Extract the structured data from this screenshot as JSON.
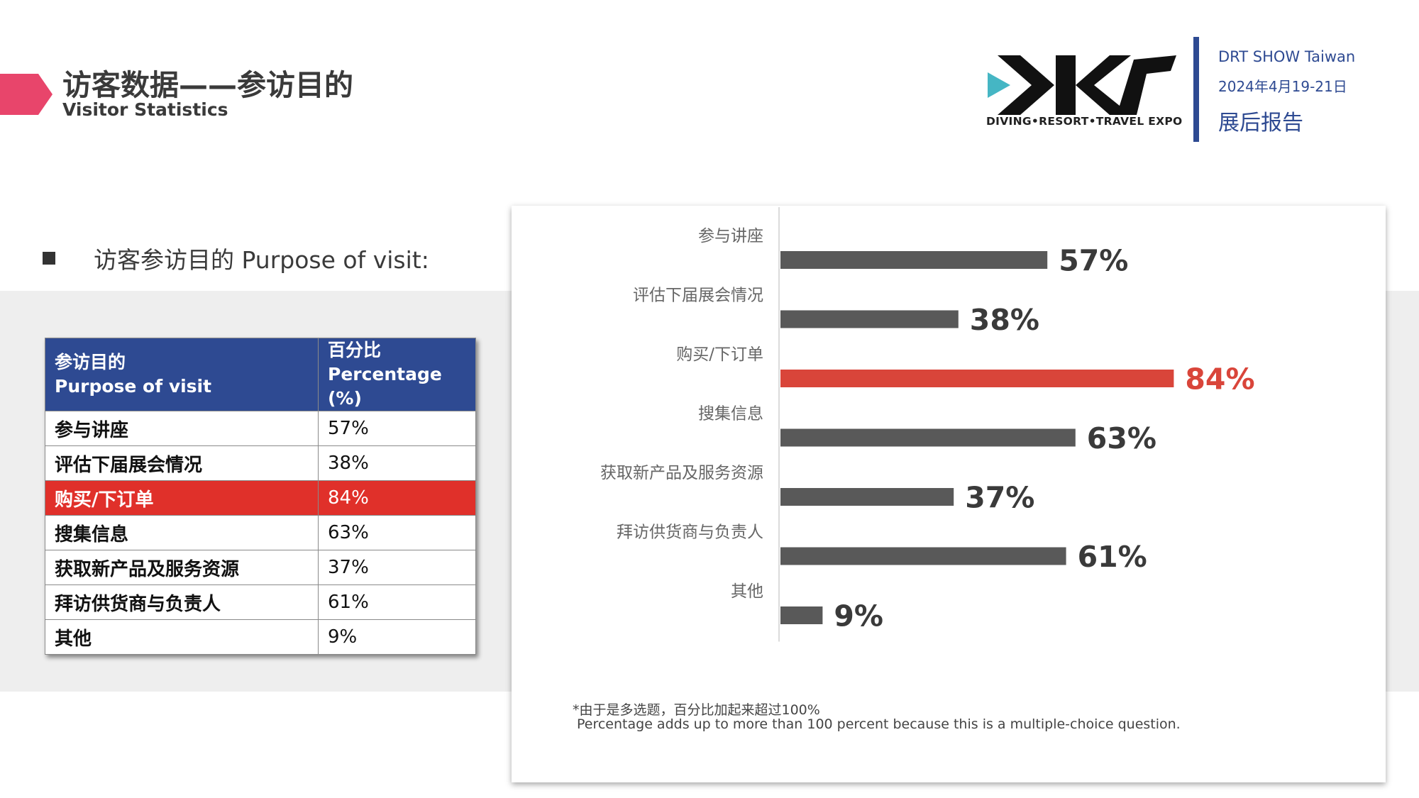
{
  "header": {
    "title_cn": "访客数据——参访目的",
    "title_en": "Visitor Statistics"
  },
  "brand": {
    "logo_text": "DRT",
    "logo_subtitle": "DIVING•RESORT•TRAVEL EXPO",
    "show_name": "DRT SHOW Taiwan",
    "show_date": "2024年4月19-21日",
    "report_label": "展后报告",
    "accent_color": "#e8456b",
    "brand_color": "#2e4a92"
  },
  "section": {
    "heading": "访客参访目的 Purpose of visit:"
  },
  "table": {
    "header_purpose_cn": "参访目的",
    "header_purpose_en": "Purpose of visit",
    "header_pct_cn": "百分比",
    "header_pct_en": "Percentage (%)",
    "rows": [
      {
        "purpose": "参与讲座",
        "pct": "57%"
      },
      {
        "purpose": "评估下届展会情况",
        "pct": "38%"
      },
      {
        "purpose": "购买/下订单",
        "pct": "84%"
      },
      {
        "purpose": "搜集信息",
        "pct": "63%"
      },
      {
        "purpose": "获取新产品及服务资源",
        "pct": "37%"
      },
      {
        "purpose": "拜访供货商与负责人",
        "pct": "61%"
      },
      {
        "purpose": "其他",
        "pct": "9%"
      }
    ],
    "highlight_index": 2,
    "highlight_color": "#e0302a"
  },
  "chart_data": {
    "type": "bar",
    "orientation": "horizontal",
    "categories": [
      "参与讲座",
      "评估下届展会情况",
      "购买/下订单",
      "搜集信息",
      "获取新产品及服务资源",
      "拜访供货商与负责人",
      "其他"
    ],
    "values": [
      57,
      38,
      84,
      63,
      37,
      61,
      9
    ],
    "value_labels": [
      "57%",
      "38%",
      "84%",
      "63%",
      "37%",
      "61%",
      "9%"
    ],
    "highlight_index": 2,
    "bar_color": "#595959",
    "highlight_color": "#d9453a",
    "xlim": [
      0,
      100
    ],
    "grid": false,
    "legend": "none"
  },
  "footnote": {
    "line1": "*由于是多选题，百分比加起来超过100%",
    "line2": "Percentage  adds  up  to  more  than  100  percent  because  this  is  a  multiple-choice   question."
  }
}
